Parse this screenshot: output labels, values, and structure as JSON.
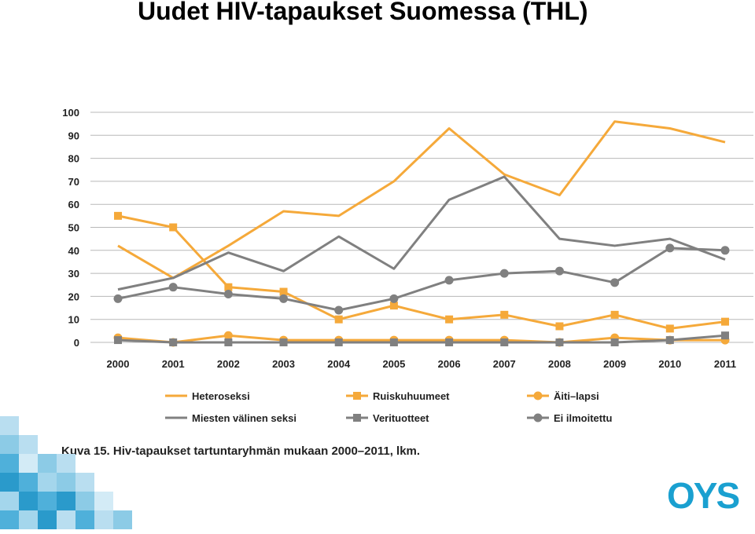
{
  "slide": {
    "title": "Uudet HIV-tapaukset Suomessa (THL)",
    "caption": "Kuva 15. Hiv-tapaukset tartuntaryhmän mukaan 2000–2011, lkm.",
    "logo": "OYS"
  },
  "colors": {
    "orange": "#f5a93a",
    "gray": "#808080",
    "logo": "#1aa0d0"
  },
  "chart_data": {
    "type": "line",
    "x": [
      "2000",
      "2001",
      "2002",
      "2003",
      "2004",
      "2005",
      "2006",
      "2007",
      "2008",
      "2009",
      "2010",
      "2011"
    ],
    "ylim": [
      0,
      100
    ],
    "yticks": [
      0,
      10,
      20,
      30,
      40,
      50,
      60,
      70,
      80,
      90,
      100
    ],
    "grid": true,
    "legend_position": "bottom",
    "series": [
      {
        "name": "Heteroseksi",
        "color": "#f5a93a",
        "marker": "none",
        "values": [
          42,
          28,
          42,
          57,
          55,
          70,
          93,
          73,
          64,
          96,
          93,
          87
        ]
      },
      {
        "name": "Ruiskuhuumeet",
        "color": "#f5a93a",
        "marker": "square",
        "values": [
          55,
          50,
          24,
          22,
          10,
          16,
          10,
          12,
          7,
          12,
          6,
          9
        ]
      },
      {
        "name": "Äiti–lapsi",
        "color": "#f5a93a",
        "marker": "circle",
        "values": [
          2,
          0,
          3,
          1,
          1,
          1,
          1,
          1,
          0,
          2,
          1,
          1
        ]
      },
      {
        "name": "Miesten välinen seksi",
        "color": "#808080",
        "marker": "none",
        "values": [
          23,
          28,
          39,
          31,
          46,
          32,
          62,
          72,
          45,
          42,
          45,
          36
        ]
      },
      {
        "name": "Verituotteet",
        "color": "#808080",
        "marker": "square",
        "values": [
          1,
          0,
          0,
          0,
          0,
          0,
          0,
          0,
          0,
          0,
          1,
          3
        ]
      },
      {
        "name": "Ei ilmoitettu",
        "color": "#808080",
        "marker": "circle",
        "values": [
          19,
          24,
          21,
          19,
          14,
          19,
          27,
          30,
          31,
          26,
          41,
          40
        ]
      }
    ]
  }
}
